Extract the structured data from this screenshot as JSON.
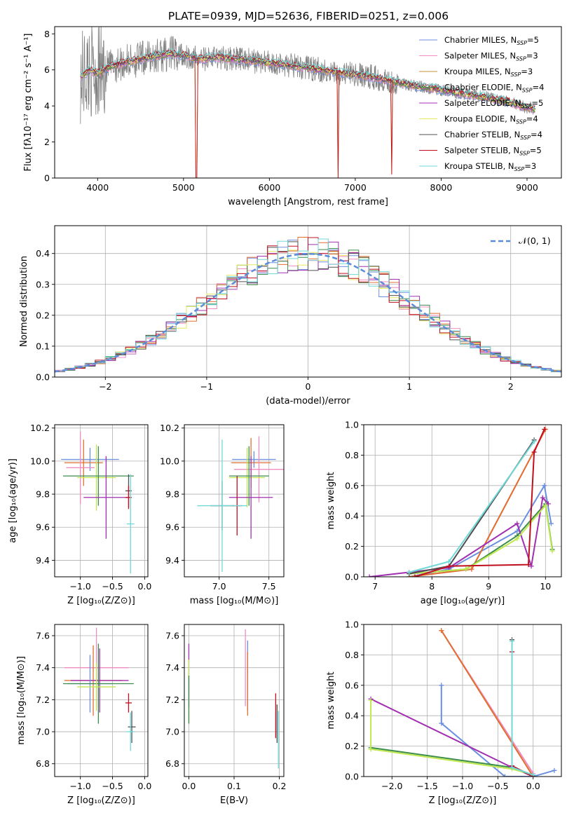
{
  "title": "PLATE=0939, MJD=52636, FIBERID=0251, z=0.006",
  "colors": {
    "Chabrier MILES": "#6b8fe0",
    "Salpeter MILES": "#f08cc0",
    "Kroupa MILES": "#c8903a",
    "Chabrier ELODIE": "#3c8c4c",
    "Salpeter ELODIE": "#a030b0",
    "Kroupa ELODIE": "#e8e860",
    "Chabrier STELIB": "#505050",
    "Salpeter STELIB": "#c01020",
    "Kroupa STELIB": "#70d8d8",
    "spectrum": "#808080",
    "normal": "#5b8bd9",
    "orange": "#e07030",
    "lime": "#c0e850"
  },
  "chart_data": [
    {
      "id": "spectrum",
      "type": "line",
      "title": "PLATE=0939, MJD=52636, FIBERID=0251, z=0.006",
      "xlabel": "wavelength [Angstrom, rest frame]",
      "ylabel": "Flux [fλ10⁻¹⁷ erg cm⁻² s⁻¹ A⁻¹]",
      "xlim": [
        3500,
        9400
      ],
      "ylim": [
        0,
        8.4
      ],
      "xticks": [
        4000,
        5000,
        6000,
        7000,
        8000,
        9000
      ],
      "yticks": [
        0,
        2,
        4,
        6,
        8
      ],
      "legend_position": "top-right",
      "legend": [
        {
          "label": "Chabrier MILES, N",
          "sub": "SSP",
          "tail": "=5"
        },
        {
          "label": "Salpeter MILES, N",
          "sub": "SSP",
          "tail": "=3"
        },
        {
          "label": "Kroupa MILES, N",
          "sub": "SSP",
          "tail": "=3"
        },
        {
          "label": "Chabrier ELODIE, N",
          "sub": "SSP",
          "tail": "=4"
        },
        {
          "label": "Salpeter ELODIE, N",
          "sub": "SSP",
          "tail": "=5"
        },
        {
          "label": "Kroupa ELODIE, N",
          "sub": "SSP",
          "tail": "=4"
        },
        {
          "label": "Chabrier STELIB, N",
          "sub": "SSP",
          "tail": "=4"
        },
        {
          "label": "Salpeter STELIB, N",
          "sub": "SSP",
          "tail": "=5"
        },
        {
          "label": "Kroupa STELIB, N",
          "sub": "SSP",
          "tail": "=3"
        }
      ],
      "continuum": [
        [
          3800,
          5.6
        ],
        [
          3900,
          6.0
        ],
        [
          4000,
          5.8
        ],
        [
          4100,
          6.1
        ],
        [
          4300,
          6.4
        ],
        [
          4500,
          6.6
        ],
        [
          4700,
          6.8
        ],
        [
          4860,
          6.9
        ],
        [
          5000,
          6.8
        ],
        [
          5200,
          6.6
        ],
        [
          5400,
          6.7
        ],
        [
          5600,
          6.6
        ],
        [
          5800,
          6.5
        ],
        [
          6000,
          6.4
        ],
        [
          6300,
          6.2
        ],
        [
          6600,
          6.0
        ],
        [
          6900,
          5.8
        ],
        [
          7200,
          5.6
        ],
        [
          7500,
          5.3
        ],
        [
          7700,
          5.1
        ],
        [
          8000,
          4.9
        ],
        [
          8200,
          4.7
        ],
        [
          8500,
          4.5
        ],
        [
          8800,
          4.2
        ],
        [
          9000,
          3.9
        ],
        [
          9100,
          3.8
        ]
      ],
      "dips": [
        [
          5150,
          0
        ],
        [
          6800,
          0
        ],
        [
          7420,
          0.2
        ]
      ]
    },
    {
      "id": "residuals",
      "type": "step",
      "xlabel": "(data-model)/error",
      "ylabel": "Normed distribution",
      "xlim": [
        -2.5,
        2.5
      ],
      "ylim": [
        0,
        0.49
      ],
      "xticks": [
        -2,
        -1,
        0,
        1,
        2
      ],
      "xticklabels": [
        "−2",
        "−1",
        "0",
        "1",
        "2"
      ],
      "yticks": [
        0,
        0.1,
        0.2,
        0.3,
        0.4
      ],
      "yticklabels": [
        "0.0",
        "0.1",
        "0.2",
        "0.3",
        "0.4"
      ],
      "legend_label": "𝒩(0, 1)",
      "legend_position": "top-right",
      "bin_width": 0.1,
      "normal": {
        "mean": 0,
        "sigma": 1
      }
    },
    {
      "id": "age-vs-Z",
      "type": "errorbar",
      "xlabel": "Z [log₁₀(Z/Z⊙)]",
      "ylabel": "age  [log₁₀(age/yr)]",
      "xlim": [
        -1.4,
        0.05
      ],
      "ylim": [
        9.3,
        10.22
      ],
      "xticks": [
        -1.0,
        -0.5,
        0.0
      ],
      "xticklabels": [
        "−1.0",
        "−0.5",
        "0.0"
      ],
      "yticks": [
        9.4,
        9.6,
        9.8,
        10.0,
        10.2
      ],
      "yticklabels": [
        "9.4",
        "9.6",
        "9.8",
        "10.0",
        "10.2"
      ],
      "points": [
        {
          "model": "Chabrier MILES",
          "x": -0.85,
          "xerr": 0.45,
          "y": 10.01,
          "yerr": 0.07
        },
        {
          "model": "Kroupa MILES",
          "x": -0.95,
          "xerr": 0.3,
          "y": 9.99,
          "yerr": 0.14
        },
        {
          "model": "Salpeter MILES",
          "x": -1.0,
          "xerr": 0.22,
          "y": 9.96,
          "yerr": 0.22
        },
        {
          "model": "Kroupa ELODIE",
          "x": -0.75,
          "xerr": 0.3,
          "y": 9.9,
          "yerr": 0.2
        },
        {
          "model": "Chabrier ELODIE",
          "x": -0.72,
          "xerr": 0.55,
          "y": 9.91,
          "yerr": 0.18
        },
        {
          "model": "Salpeter ELODIE",
          "x": -0.6,
          "xerr": 0.35,
          "y": 9.78,
          "yerr": 0.25
        },
        {
          "model": "Chabrier STELIB",
          "x": -0.25,
          "xerr": 0.05,
          "y": 9.82,
          "yerr": 0.1
        },
        {
          "model": "Salpeter STELIB",
          "x": -0.25,
          "xerr": 0.05,
          "y": 9.78,
          "yerr": 0.07
        },
        {
          "model": "Kroupa STELIB",
          "x": -0.22,
          "xerr": 0.06,
          "y": 9.62,
          "yerr": 0.3
        }
      ]
    },
    {
      "id": "age-vs-mass",
      "type": "errorbar",
      "xlabel": "mass [log₁₀(M/M⊙)]",
      "xlim": [
        6.65,
        7.65
      ],
      "ylim": [
        9.3,
        10.22
      ],
      "xticks": [
        7.0,
        7.5
      ],
      "xticklabels": [
        "7.0",
        "7.5"
      ],
      "yticks": [
        9.4,
        9.6,
        9.8,
        10.0,
        10.2
      ],
      "yticklabels": [
        "9.4",
        "9.6",
        "9.8",
        "10.0",
        "10.2"
      ],
      "points": [
        {
          "model": "Chabrier MILES",
          "x": 7.35,
          "xerr": 0.22,
          "y": 10.01,
          "yerr": 0.05
        },
        {
          "model": "Kroupa MILES",
          "x": 7.32,
          "xerr": 0.2,
          "y": 9.99,
          "yerr": 0.15
        },
        {
          "model": "Salpeter MILES",
          "x": 7.4,
          "xerr": 0.25,
          "y": 9.95,
          "yerr": 0.2
        },
        {
          "model": "Kroupa ELODIE",
          "x": 7.28,
          "xerr": 0.18,
          "y": 9.9,
          "yerr": 0.18
        },
        {
          "model": "Chabrier ELODIE",
          "x": 7.3,
          "xerr": 0.2,
          "y": 9.91,
          "yerr": 0.18
        },
        {
          "model": "Salpeter ELODIE",
          "x": 7.32,
          "xerr": 0.22,
          "y": 9.78,
          "yerr": 0.25
        },
        {
          "model": "Chabrier STELIB",
          "x": 7.03,
          "xerr": 0.12,
          "y": 9.73,
          "yerr": 0.15
        },
        {
          "model": "Salpeter STELIB",
          "x": 7.18,
          "xerr": 0.05,
          "y": 9.73,
          "yerr": 0.18
        },
        {
          "model": "Kroupa STELIB",
          "x": 7.03,
          "xerr": 0.25,
          "y": 9.73,
          "yerr": 0.4
        }
      ]
    },
    {
      "id": "weight-vs-age",
      "type": "line",
      "xlabel": "age  [log₁₀(age/yr)]",
      "ylabel": "mass weight",
      "xlim": [
        6.8,
        10.28
      ],
      "ylim": [
        0,
        1
      ],
      "xticks": [
        7,
        8,
        9,
        10
      ],
      "yticks": [
        0,
        0.2,
        0.4,
        0.6,
        0.8,
        1.0
      ],
      "yticklabels": [
        "0.0",
        "0.2",
        "0.4",
        "0.6",
        "0.8",
        "1.0"
      ],
      "series": [
        {
          "model": "Chabrier MILES",
          "x": [
            7.6,
            8.3,
            9.5,
            9.98,
            10.1
          ],
          "y": [
            0.0,
            0.05,
            0.3,
            0.6,
            0.35
          ]
        },
        {
          "model": "Salpeter MILES",
          "x": [
            7.6,
            8.7,
            10.0
          ],
          "y": [
            0.0,
            0.05,
            0.97
          ]
        },
        {
          "model": "Kroupa MILES",
          "x": [
            7.6,
            8.7,
            10.0
          ],
          "y": [
            0.0,
            0.05,
            0.97
          ]
        },
        {
          "model": "Chabrier ELODIE",
          "x": [
            7.6,
            8.6,
            9.5,
            10.0,
            10.12
          ],
          "y": [
            0.02,
            0.05,
            0.27,
            0.48,
            0.18
          ]
        },
        {
          "model": "Salpeter ELODIE",
          "x": [
            6.9,
            7.6,
            8.3,
            9.5,
            9.75,
            9.95,
            10.05
          ],
          "y": [
            0.0,
            0.03,
            0.06,
            0.35,
            0.07,
            0.52,
            0.48
          ]
        },
        {
          "model": "Kroupa ELODIE",
          "x": [
            7.6,
            8.6,
            9.5,
            10.0,
            10.12
          ],
          "y": [
            0.02,
            0.05,
            0.25,
            0.47,
            0.17
          ]
        },
        {
          "model": "Chabrier STELIB",
          "x": [
            7.6,
            8.3,
            9.8
          ],
          "y": [
            0.02,
            0.07,
            0.9
          ]
        },
        {
          "model": "Salpeter STELIB",
          "x": [
            7.7,
            8.3,
            9.7,
            9.8,
            9.98
          ],
          "y": [
            0.0,
            0.07,
            0.08,
            0.82,
            0.97
          ]
        },
        {
          "model": "Kroupa STELIB",
          "x": [
            7.6,
            8.3,
            9.8
          ],
          "y": [
            0.03,
            0.1,
            0.89
          ]
        }
      ]
    },
    {
      "id": "mass-vs-Z",
      "type": "errorbar",
      "xlabel": "Z [log₁₀(Z/Z⊙)]",
      "ylabel": "mass [log₁₀(M/M⊙)]",
      "xlim": [
        -1.4,
        0.05
      ],
      "ylim": [
        6.72,
        7.67
      ],
      "xticks": [
        -1.0,
        -0.5,
        0.0
      ],
      "xticklabels": [
        "−1.0",
        "−0.5",
        "0.0"
      ],
      "yticks": [
        6.8,
        7.0,
        7.2,
        7.4,
        7.6
      ],
      "yticklabels": [
        "6.8",
        "7.0",
        "7.2",
        "7.4",
        "7.6"
      ],
      "points": [
        {
          "model": "Salpeter MILES",
          "x": -0.75,
          "xerr": 0.5,
          "y": 7.4,
          "yerr": 0.25
        },
        {
          "model": "Kroupa MILES",
          "x": -0.8,
          "xerr": 0.45,
          "y": 7.32,
          "yerr": 0.22
        },
        {
          "model": "Salpeter ELODIE",
          "x": -0.7,
          "xerr": 0.45,
          "y": 7.32,
          "yerr": 0.2
        },
        {
          "model": "Chabrier MILES",
          "x": -0.85,
          "xerr": 0.35,
          "y": 7.3,
          "yerr": 0.18
        },
        {
          "model": "Chabrier ELODIE",
          "x": -0.72,
          "xerr": 0.55,
          "y": 7.3,
          "yerr": 0.25
        },
        {
          "model": "Kroupa ELODIE",
          "x": -0.75,
          "xerr": 0.3,
          "y": 7.28,
          "yerr": 0.15
        },
        {
          "model": "Salpeter STELIB",
          "x": -0.25,
          "xerr": 0.05,
          "y": 7.18,
          "yerr": 0.06
        },
        {
          "model": "Chabrier STELIB",
          "x": -0.2,
          "xerr": 0.06,
          "y": 7.03,
          "yerr": 0.1
        },
        {
          "model": "Kroupa STELIB",
          "x": -0.22,
          "xerr": 0.07,
          "y": 7.0,
          "yerr": 0.12
        }
      ]
    },
    {
      "id": "mass-vs-EBV",
      "type": "errorbar",
      "xlabel": "E(B-V)",
      "xlim": [
        -0.01,
        0.21
      ],
      "ylim": [
        6.72,
        7.67
      ],
      "xticks": [
        0.0,
        0.1,
        0.2
      ],
      "xticklabels": [
        "0.0",
        "0.1",
        "0.2"
      ],
      "yticks": [
        6.8,
        7.0,
        7.2,
        7.4,
        7.6
      ],
      "yticklabels": [
        "6.8",
        "7.0",
        "7.2",
        "7.4",
        "7.6"
      ],
      "points": [
        {
          "model": "Salpeter ELODIE",
          "x": 0.0,
          "xerr": 0,
          "y": 7.35,
          "yerr": 0.2
        },
        {
          "model": "Kroupa ELODIE",
          "x": 0.0,
          "xerr": 0,
          "y": 7.25,
          "yerr": 0.2
        },
        {
          "model": "Chabrier ELODIE",
          "x": 0.0,
          "xerr": 0,
          "y": 7.2,
          "yerr": 0.15
        },
        {
          "model": "Salpeter MILES",
          "x": 0.125,
          "xerr": 0,
          "y": 7.4,
          "yerr": 0.24
        },
        {
          "model": "Chabrier MILES",
          "x": 0.13,
          "xerr": 0,
          "y": 7.35,
          "yerr": 0.22
        },
        {
          "model": "Kroupa MILES",
          "x": 0.13,
          "xerr": 0,
          "y": 7.3,
          "yerr": 0.2
        },
        {
          "model": "Salpeter STELIB",
          "x": 0.192,
          "xerr": 0,
          "y": 7.1,
          "yerr": 0.14
        },
        {
          "model": "Chabrier STELIB",
          "x": 0.195,
          "xerr": 0,
          "y": 7.05,
          "yerr": 0.12
        },
        {
          "model": "Kroupa STELIB",
          "x": 0.198,
          "xerr": 0,
          "y": 6.95,
          "yerr": 0.18
        }
      ]
    },
    {
      "id": "weight-vs-Z",
      "type": "line",
      "xlabel": "Z [log₁₀(Z/Z⊙)]",
      "ylabel": "mass weight",
      "xlim": [
        -2.4,
        0.4
      ],
      "ylim": [
        0,
        1
      ],
      "xticks": [
        -2.0,
        -1.5,
        -1.0,
        -0.5,
        0.0
      ],
      "xticklabels": [
        "−2.0",
        "−1.5",
        "−1.0",
        "−0.5",
        "0.0"
      ],
      "yticks": [
        0,
        0.2,
        0.4,
        0.6,
        0.8,
        1.0
      ],
      "yticklabels": [
        "0.0",
        "0.2",
        "0.4",
        "0.6",
        "0.8",
        "1.0"
      ],
      "series": [
        {
          "model": "Chabrier MILES",
          "x": [
            -1.3,
            -1.3,
            -0.4,
            0.0,
            0.3
          ],
          "y": [
            0.6,
            0.35,
            0.0,
            0.0,
            0.04
          ]
        },
        {
          "model": "Salpeter MILES",
          "x": [
            -1.3,
            0.0
          ],
          "y": [
            0.96,
            0.02
          ]
        },
        {
          "model": "Kroupa MILES",
          "x": [
            -1.3,
            0.0
          ],
          "y": [
            0.96,
            0.0
          ]
        },
        {
          "model": "Chabrier ELODIE",
          "x": [
            -2.3,
            -0.3,
            0.0
          ],
          "y": [
            0.19,
            0.06,
            0.01
          ]
        },
        {
          "model": "Salpeter ELODIE",
          "x": [
            -2.3,
            -0.3,
            0.0
          ],
          "y": [
            0.51,
            0.06,
            0.0
          ]
        },
        {
          "model": "Kroupa ELODIE",
          "x": [
            -2.3,
            -2.3,
            -0.3,
            0.0
          ],
          "y": [
            0.5,
            0.18,
            0.05,
            0.01
          ]
        },
        {
          "model": "Chabrier STELIB",
          "x": [
            -0.3,
            -0.3,
            0.0
          ],
          "y": [
            0.9,
            0.07,
            0.0
          ]
        },
        {
          "model": "Salpeter STELIB",
          "x": [
            -0.3,
            -0.3,
            0.0
          ],
          "y": [
            0.82,
            0.07,
            0.0
          ]
        },
        {
          "model": "Kroupa STELIB",
          "x": [
            -0.3,
            -0.3,
            0.0
          ],
          "y": [
            0.89,
            0.06,
            0.01
          ]
        }
      ]
    }
  ]
}
